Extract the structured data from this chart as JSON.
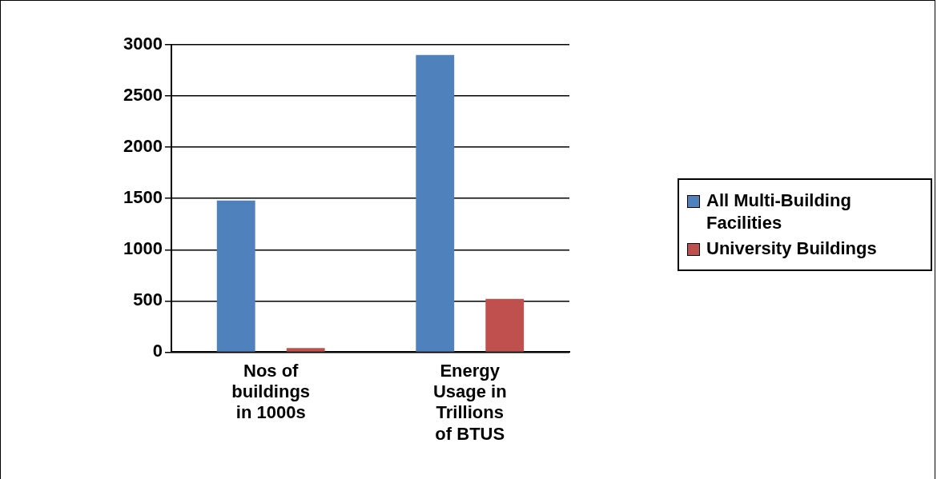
{
  "chart_data": {
    "type": "bar",
    "categories": [
      "Nos of buildings in 1000s",
      "Energy Usage in Trillions of BTUS"
    ],
    "series": [
      {
        "name": "All Multi-Building Facilities",
        "color": "#4f81bd",
        "values": [
          1480,
          2900
        ]
      },
      {
        "name": "University Buildings",
        "color": "#c0504d",
        "values": [
          40,
          520
        ]
      }
    ],
    "ylim": [
      0,
      3000
    ],
    "yticks": [
      0,
      500,
      1000,
      1500,
      2000,
      2500,
      3000
    ],
    "grid": "y",
    "legend": "right"
  }
}
